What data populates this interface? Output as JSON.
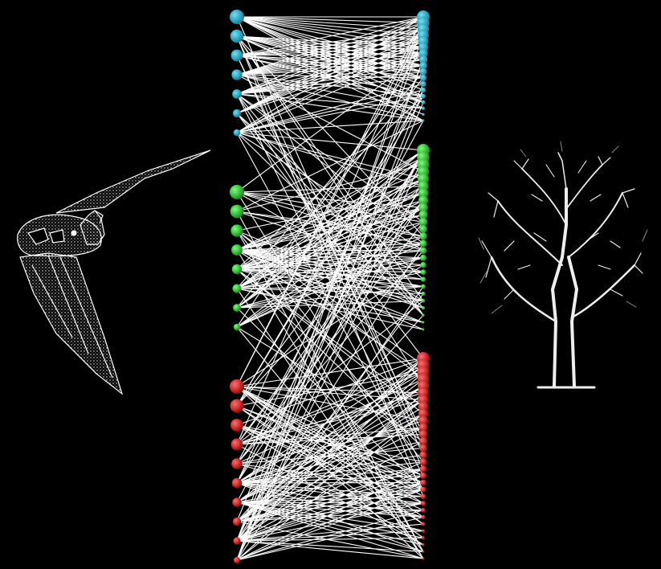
{
  "network": {
    "type": "bipartite",
    "left_set": "bats",
    "right_set": "plants",
    "modules": [
      {
        "color": "#1aa7c2",
        "left_count": 7,
        "right_count": 18
      },
      {
        "color": "#22cc22",
        "left_count": 8,
        "right_count": 26
      },
      {
        "color": "#dd1111",
        "left_count": 10,
        "right_count": 30
      }
    ],
    "edge_color": "#ffffff",
    "background": "#000000"
  },
  "illustrations": {
    "left": {
      "icon": "bat-icon"
    },
    "right": {
      "icon": "tree-icon"
    }
  }
}
